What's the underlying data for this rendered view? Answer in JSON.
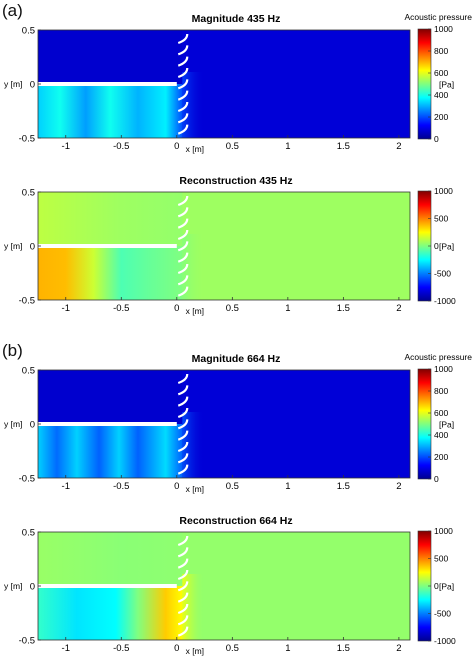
{
  "panel_labels": [
    "(a)",
    "(b)"
  ],
  "chart_data": [
    {
      "type": "heatmap",
      "title": "Magnitude 435 Hz",
      "xlabel": "x [m]",
      "ylabel": "y [m]",
      "x_ticks": [
        -1,
        -0.5,
        0,
        0.5,
        1,
        1.5,
        2
      ],
      "y_ticks": [
        -0.5,
        0,
        0.5
      ],
      "xlim": [
        -1.25,
        2.1
      ],
      "ylim": [
        -0.5,
        0.5
      ],
      "colorbar": {
        "label": "Acoustic pressure",
        "unit": "[Pa]",
        "min": 0,
        "max": 1000,
        "ticks": [
          0,
          200,
          400,
          600,
          800,
          1000
        ]
      },
      "field": {
        "mode": "magnitude",
        "duct": [
          {
            "x": -1.25,
            "v": 330
          },
          {
            "x": -1.05,
            "v": 390
          },
          {
            "x": -0.82,
            "v": 280
          },
          {
            "x": -0.6,
            "v": 390
          },
          {
            "x": -0.35,
            "v": 300
          },
          {
            "x": -0.1,
            "v": 360
          },
          {
            "x": 0.05,
            "v": 200
          }
        ],
        "upper": 70,
        "outside": 80
      }
    },
    {
      "type": "heatmap",
      "title": "Reconstruction 435 Hz",
      "xlabel": "x [m]",
      "ylabel": "y [m]",
      "x_ticks": [
        -1,
        -0.5,
        0,
        0.5,
        1,
        1.5,
        2
      ],
      "y_ticks": [
        -0.5,
        0,
        0.5
      ],
      "xlim": [
        -1.25,
        2.1
      ],
      "ylim": [
        -0.5,
        0.5
      ],
      "colorbar": {
        "label": "",
        "unit": "[Pa]",
        "min": -1000,
        "max": 1000,
        "ticks": [
          -1000,
          -500,
          0,
          500,
          1000
        ]
      },
      "field": {
        "mode": "reconstruction",
        "duct": [
          {
            "x": -1.25,
            "v": 400
          },
          {
            "x": -1.0,
            "v": 380
          },
          {
            "x": -0.75,
            "v": 150
          },
          {
            "x": -0.5,
            "v": -100
          },
          {
            "x": -0.25,
            "v": -50
          },
          {
            "x": 0.05,
            "v": 0
          }
        ],
        "upper": [
          {
            "x": -1.25,
            "v": 120
          },
          {
            "x": -0.5,
            "v": 60
          },
          {
            "x": 0.05,
            "v": 40
          }
        ],
        "outside": 60
      }
    },
    {
      "type": "heatmap",
      "title": "Magnitude 664 Hz",
      "xlabel": "x [m]",
      "ylabel": "y [m]",
      "x_ticks": [
        -1,
        -0.5,
        0,
        0.5,
        1,
        1.5,
        2
      ],
      "y_ticks": [
        -0.5,
        0,
        0.5
      ],
      "xlim": [
        -1.25,
        2.1
      ],
      "ylim": [
        -0.5,
        0.5
      ],
      "colorbar": {
        "label": "Acoustic pressure",
        "unit": "[Pa]",
        "min": 0,
        "max": 1000,
        "ticks": [
          0,
          200,
          400,
          600,
          800,
          1000
        ]
      },
      "field": {
        "mode": "magnitude",
        "duct": [
          {
            "x": -1.25,
            "v": 330
          },
          {
            "x": -1.08,
            "v": 230
          },
          {
            "x": -0.9,
            "v": 330
          },
          {
            "x": -0.7,
            "v": 220
          },
          {
            "x": -0.52,
            "v": 330
          },
          {
            "x": -0.35,
            "v": 220
          },
          {
            "x": -0.1,
            "v": 340
          },
          {
            "x": 0.05,
            "v": 220
          }
        ],
        "upper": 70,
        "outside": 80
      }
    },
    {
      "type": "heatmap",
      "title": "Reconstruction 664 Hz",
      "xlabel": "x [m]",
      "ylabel": "y [m]",
      "x_ticks": [
        -1,
        -0.5,
        0,
        0.5,
        1,
        1.5,
        2
      ],
      "y_ticks": [
        -0.5,
        0,
        0.5
      ],
      "xlim": [
        -1.25,
        2.1
      ],
      "ylim": [
        -0.5,
        0.5
      ],
      "colorbar": {
        "label": "",
        "unit": "[Pa]",
        "min": -1000,
        "max": 1000,
        "ticks": [
          -1000,
          -500,
          0,
          500,
          1000
        ]
      },
      "field": {
        "mode": "reconstruction",
        "duct": [
          {
            "x": -1.25,
            "v": -150
          },
          {
            "x": -0.9,
            "v": -300
          },
          {
            "x": -0.55,
            "v": -250
          },
          {
            "x": -0.35,
            "v": 0
          },
          {
            "x": -0.1,
            "v": 350
          },
          {
            "x": 0.05,
            "v": 250
          }
        ],
        "upper": [
          {
            "x": -1.25,
            "v": 50
          },
          {
            "x": -0.5,
            "v": 20
          },
          {
            "x": 0.05,
            "v": 30
          }
        ],
        "outside": 40
      }
    }
  ]
}
